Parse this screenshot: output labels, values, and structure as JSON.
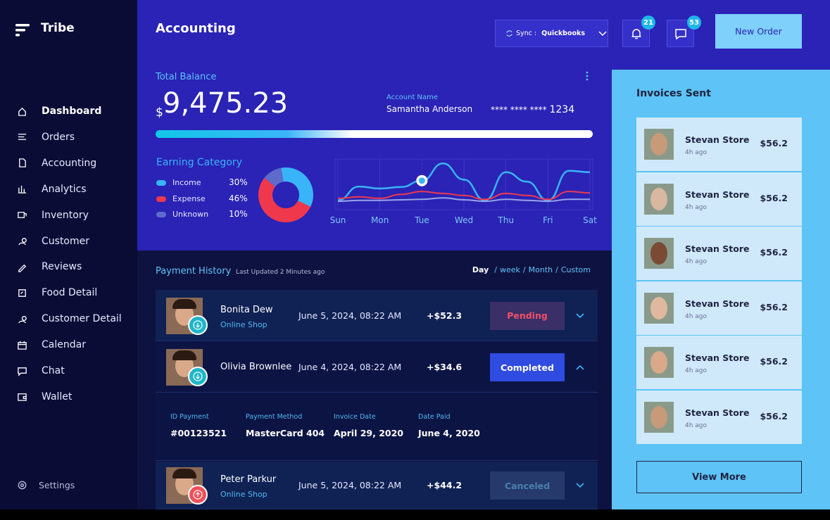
{
  "sidebar": {
    "brand": "Tribe",
    "nav": [
      "Dashboard",
      "Orders",
      "Accounting",
      "Analytics",
      "Inventory",
      "Customer",
      "Reviews",
      "Food Detail",
      "Customer Detail",
      "Calendar",
      "Chat",
      "Wallet"
    ],
    "settings": "Settings"
  },
  "header": {
    "title": "Accounting",
    "sync_label": "Sync : ",
    "sync_value": "Quickbooks",
    "notifications": "21",
    "messages": "53",
    "new_order": "New Order"
  },
  "balance": {
    "label": "Total Balance",
    "currency": "$",
    "amount": "9,475.23",
    "account_label": "Account Name",
    "account_name": "Samantha Anderson",
    "card_mask": "**** **** ****",
    "card_last": "1234"
  },
  "chart_data": [
    {
      "type": "pie",
      "title": "Earning Category",
      "categories": [
        "Income",
        "Expense",
        "Unknown"
      ],
      "values": [
        30,
        46,
        10
      ],
      "value_labels": [
        "30%",
        "46%",
        "10%"
      ],
      "colors": [
        "#3ab4f8",
        "#f0384d",
        "#5e6bcc"
      ]
    },
    {
      "type": "line",
      "x": [
        0,
        0.5,
        1,
        1.5,
        2,
        2.5,
        3,
        3.5,
        4,
        4.5,
        5,
        5.5,
        6
      ],
      "xlim": [
        0,
        6
      ],
      "xticks": [
        {
          "value": 0,
          "label": "Sun"
        },
        {
          "value": 1,
          "label": "Mon"
        },
        {
          "value": 2,
          "label": "Tue"
        },
        {
          "value": 3,
          "label": "Wed"
        },
        {
          "value": 4,
          "label": "Thu"
        },
        {
          "value": 5,
          "label": "Fri"
        },
        {
          "value": 6,
          "label": "Sat"
        }
      ],
      "ylim": [
        0,
        100
      ],
      "grid": true,
      "highlight_x": 2,
      "series": [
        {
          "color": "#3ab4f8",
          "values": [
            19,
            47,
            43,
            46,
            59,
            94,
            61,
            19,
            76,
            57,
            19,
            79,
            76
          ]
        },
        {
          "color": "#f0384d",
          "values": [
            23,
            26,
            23,
            31,
            37,
            33,
            29,
            21,
            33,
            29,
            21,
            37,
            34
          ]
        },
        {
          "color": "#9aa3e8",
          "values": [
            17,
            19,
            19,
            20,
            21,
            24,
            20,
            17,
            21,
            19,
            17,
            21,
            21
          ]
        }
      ]
    }
  ],
  "payments": {
    "title": "Payment History",
    "updated": "Last Updated 2 Minutes ago",
    "filters": [
      "Day",
      "week",
      "Month",
      "Custom"
    ],
    "rows": [
      {
        "name": "Bonita Dew",
        "source": "Online Shop",
        "date": "June 5, 2024, 08:22 AM",
        "amount": "+$52.3",
        "status": "Pending"
      },
      {
        "name": "Olivia Brownlee",
        "date": "June 4, 2024, 08:22 AM",
        "amount": "+$34.6",
        "status": "Completed"
      },
      {
        "name": "Peter Parkur",
        "source": "Online Shop",
        "date": "June 5, 2024, 08:22 AM",
        "amount": "+$44.2",
        "status": "Canceled"
      }
    ],
    "details": [
      {
        "label": "ID Payment",
        "value": "#00123521"
      },
      {
        "label": "Payment Method",
        "value": "MasterCard 404"
      },
      {
        "label": "Invoice Date",
        "value": "April 29, 2020"
      },
      {
        "label": "Date Paid",
        "value": "June 4, 2020"
      }
    ]
  },
  "invoices": {
    "title": "Invoices Sent",
    "items": [
      {
        "name": "Stevan Store",
        "time": "4h ago",
        "amount": "$56.2"
      },
      {
        "name": "Stevan Store",
        "time": "4h ago",
        "amount": "$56.2"
      },
      {
        "name": "Stevan Store",
        "time": "4h ago",
        "amount": "$56.2"
      },
      {
        "name": "Stevan Store",
        "time": "4h ago",
        "amount": "$56.2"
      },
      {
        "name": "Stevan Store",
        "time": "4h ago",
        "amount": "$56.2"
      },
      {
        "name": "Stevan Store",
        "time": "4h ago",
        "amount": "$56.2"
      }
    ],
    "button": "View More"
  }
}
